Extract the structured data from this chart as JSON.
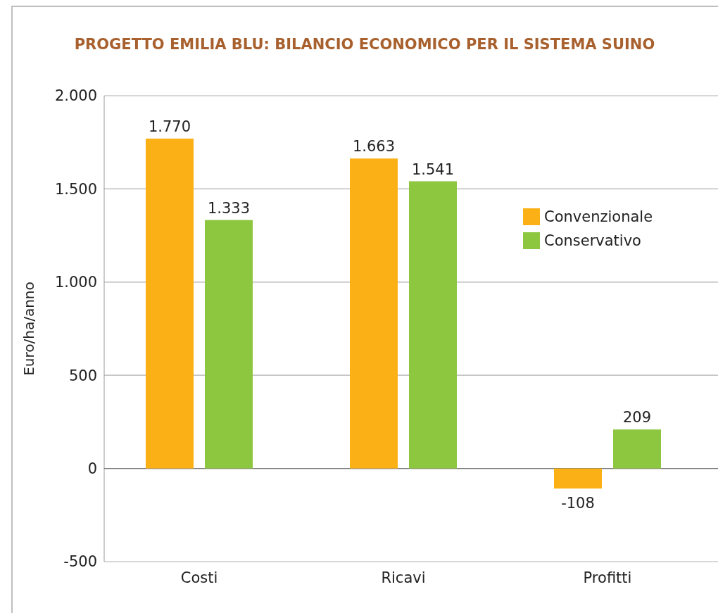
{
  "chart_data": {
    "type": "bar",
    "title": "PROGETTO EMILIA BLU: BILANCIO ECONOMICO PER IL SISTEMA SUINO",
    "ylabel": "Euro/ha/anno",
    "categories": [
      "Costi",
      "Ricavi",
      "Profitti"
    ],
    "series": [
      {
        "name": "Convenzionale",
        "color": "#fbb016",
        "values": [
          1770,
          1663,
          -108
        ],
        "value_labels": [
          "1.770",
          "1.663",
          "-108"
        ]
      },
      {
        "name": "Conservativo",
        "color": "#8dc63f",
        "values": [
          1333,
          1541,
          209
        ],
        "value_labels": [
          "1.333",
          "1.541",
          "209"
        ]
      }
    ],
    "ylim": [
      -500,
      2000
    ],
    "yticks": [
      {
        "value": -500,
        "label": "-500"
      },
      0,
      500,
      {
        "value": 1000,
        "label": "1.000"
      },
      {
        "value": 1500,
        "label": "1.500"
      },
      {
        "value": 2000,
        "label": "2.000"
      }
    ],
    "grid": "y",
    "legend": "top right"
  }
}
